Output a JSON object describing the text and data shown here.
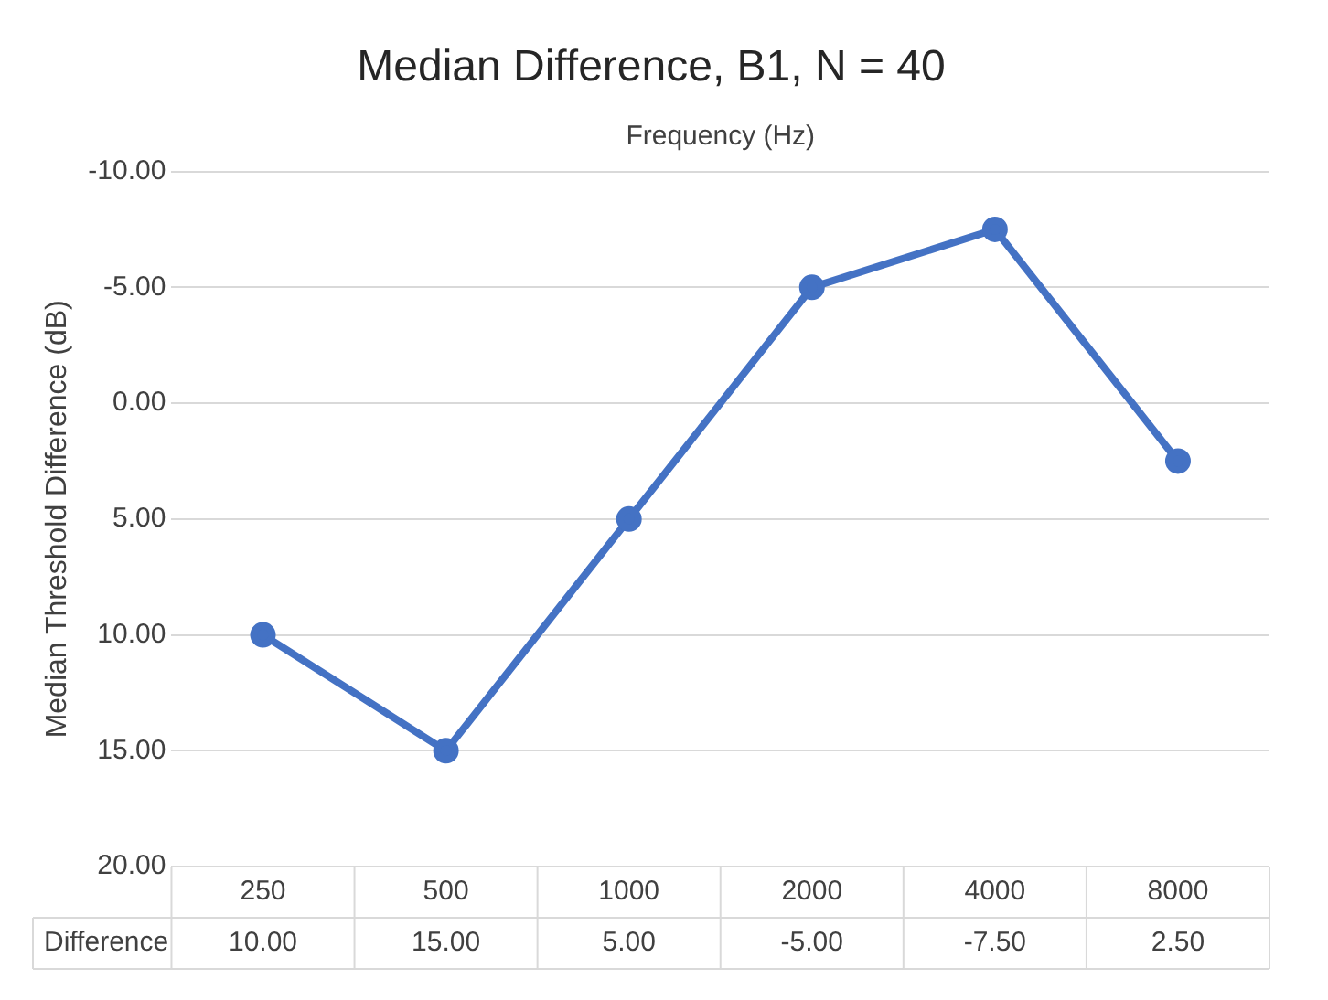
{
  "chart_data": {
    "type": "line",
    "title": "Median Difference, B1, N = 40",
    "xlabel": "Frequency (Hz)",
    "ylabel": "Median Threshold Difference (dB)",
    "categories": [
      "250",
      "500",
      "1000",
      "2000",
      "4000",
      "8000"
    ],
    "series": [
      {
        "name": "Difference",
        "color": "#4472c4",
        "values": [
          10,
          15,
          5,
          -5,
          -7.5,
          2.5
        ],
        "value_labels": [
          "10.00",
          "15.00",
          "5.00",
          "-5.00",
          "-7.50",
          "2.50"
        ]
      }
    ],
    "ylim": [
      20,
      -10
    ],
    "yticks": [
      {
        "value": -10,
        "label": "-10.00"
      },
      {
        "value": -5,
        "label": "-5.00"
      },
      {
        "value": 0,
        "label": "0.00"
      },
      {
        "value": 5,
        "label": "5.00"
      },
      {
        "value": 10,
        "label": "10.00"
      },
      {
        "value": 15,
        "label": "15.00"
      },
      {
        "value": 20,
        "label": "20.00"
      }
    ],
    "grid": "y",
    "legend": false,
    "marker": "circle",
    "line_style": "solid"
  }
}
